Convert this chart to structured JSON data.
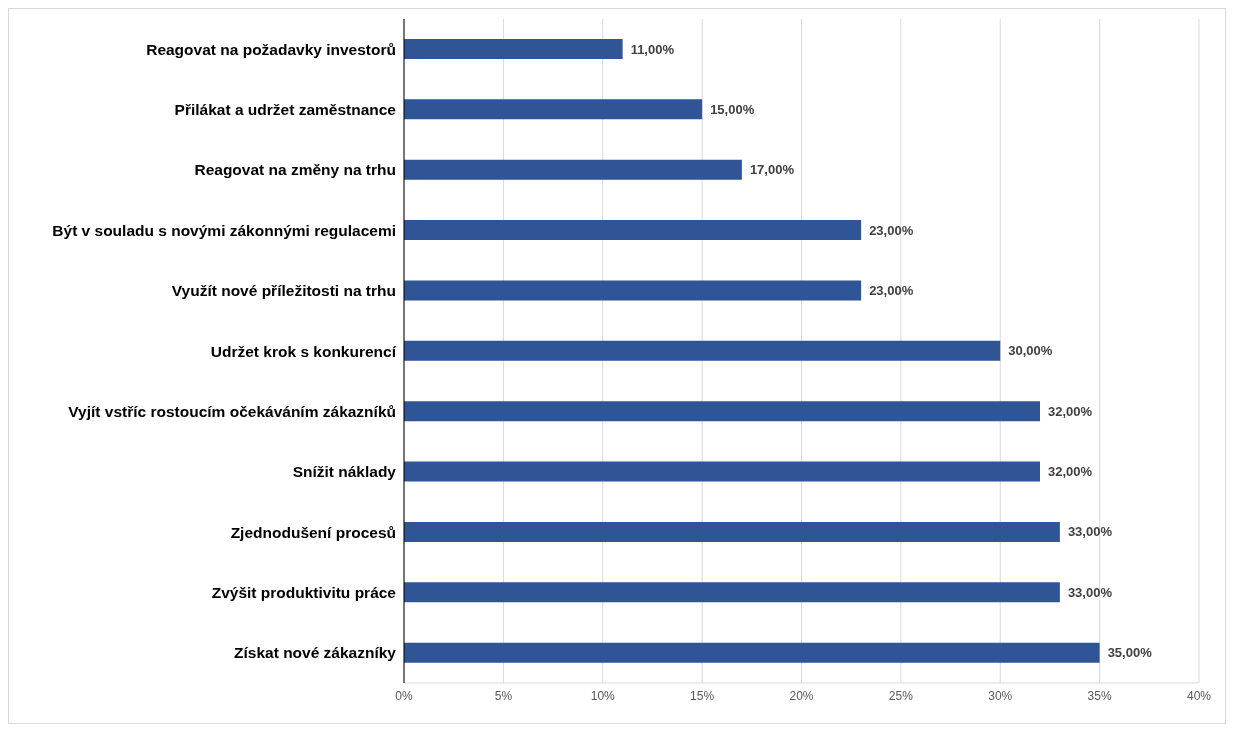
{
  "chart_data": {
    "type": "bar",
    "orientation": "horizontal",
    "categories": [
      "Reagovat na požadavky investorů",
      "Přilákat a udržet zaměstnance",
      "Reagovat na změny na trhu",
      "Být v souladu s novými zákonnými regulacemi",
      "Využít nové příležitosti na trhu",
      "Udržet krok s konkurencí",
      "Vyjít vstříc rostoucím očekáváním zákazníků",
      "Snížit náklady",
      "Zjednodušení procesů",
      "Zvýšit produktivitu práce",
      "Získat nové zákazníky"
    ],
    "values": [
      11,
      15,
      17,
      23,
      23,
      30,
      32,
      32,
      33,
      33,
      35
    ],
    "value_labels": [
      "11,00%",
      "15,00%",
      "17,00%",
      "23,00%",
      "23,00%",
      "30,00%",
      "32,00%",
      "32,00%",
      "33,00%",
      "33,00%",
      "35,00%"
    ],
    "color": "#2f5597",
    "xlim": [
      0,
      40
    ],
    "xticks": [
      {
        "value": 0,
        "label": "0%"
      },
      {
        "value": 5,
        "label": "5%"
      },
      {
        "value": 10,
        "label": "10%"
      },
      {
        "value": 15,
        "label": "15%"
      },
      {
        "value": 20,
        "label": "20%"
      },
      {
        "value": 25,
        "label": "25%"
      },
      {
        "value": 30,
        "label": "30%"
      },
      {
        "value": 35,
        "label": "35%"
      },
      {
        "value": 40,
        "label": "40%"
      }
    ],
    "grid": "x"
  }
}
